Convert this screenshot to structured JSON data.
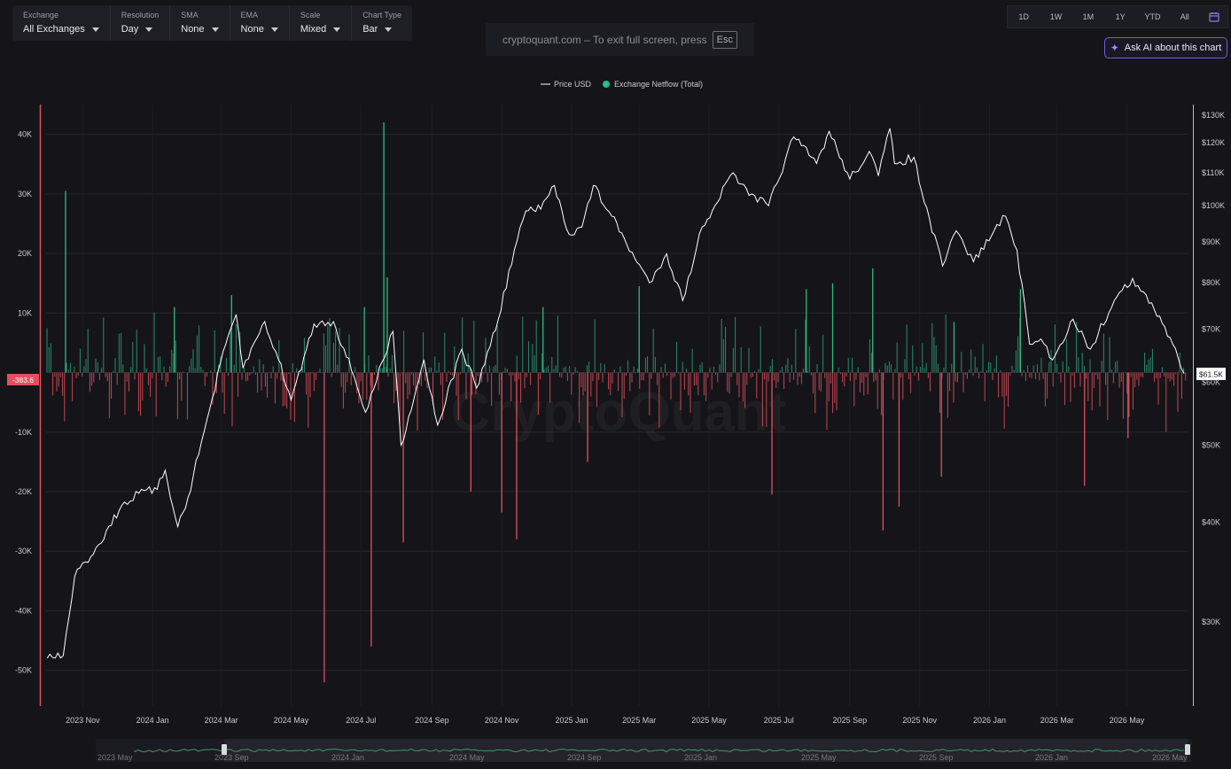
{
  "toolbar": {
    "exchange": {
      "label": "Exchange",
      "value": "All Exchanges"
    },
    "resolution": {
      "label": "Resolution",
      "value": "Day"
    },
    "sma": {
      "label": "SMA",
      "value": "None"
    },
    "ema": {
      "label": "EMA",
      "value": "None"
    },
    "scale": {
      "label": "Scale",
      "value": "Mixed"
    },
    "chart_type": {
      "label": "Chart Type",
      "value": "Bar"
    }
  },
  "fullscreen_note": {
    "text": "cryptoquant.com – To exit full screen, press",
    "key": "Esc"
  },
  "ranges": [
    "1D",
    "1W",
    "1M",
    "1Y",
    "YTD",
    "All"
  ],
  "ask_ai": {
    "label": "Ask AI about this chart",
    "icon": "sparkle-icon"
  },
  "watermark": "CryptoQuant",
  "colors": {
    "price": "#ffffff",
    "inflow": "#2fa07a",
    "outflow": "#e0505f",
    "accent": "#6d5de0"
  },
  "chart_data": {
    "type": "bar",
    "legend": [
      "Price USD",
      "Exchange Netflow (Total)"
    ],
    "legend_position": "top-center",
    "x_ticks": [
      "2023 Nov",
      "2024 Jan",
      "2024 Mar",
      "2024 May",
      "2024 Jul",
      "2024 Sep",
      "2024 Nov",
      "2025 Jan",
      "2025 Mar",
      "2025 May",
      "2025 Jul",
      "2025 Sep",
      "2025 Nov",
      "2026 Jan",
      "2026 Mar",
      "2026 May"
    ],
    "x_range": [
      "2023-09-30",
      "2026-06-23"
    ],
    "left_axis": {
      "ticks": [
        "40K",
        "30K",
        "20K",
        "10K",
        "0",
        "-10K",
        "-20K",
        "-30K",
        "-40K",
        "-50K"
      ],
      "range": [
        -56000,
        45000
      ]
    },
    "right_axis": {
      "ticks": [
        "$130K",
        "$120K",
        "$110K",
        "$100K",
        "$90K",
        "$80K",
        "$70K",
        "$60K",
        "$50K",
        "$40K",
        "$30K"
      ],
      "scale": "log",
      "range": [
        23500,
        134000
      ]
    },
    "current_netflow": "-383.6",
    "current_price": "$61.5K",
    "grid": true,
    "price_series": [
      {
        "x": "2023-10-01",
        "y": 27000
      },
      {
        "x": "2023-10-15",
        "y": 27200
      },
      {
        "x": "2023-10-25",
        "y": 34200
      },
      {
        "x": "2023-11-15",
        "y": 37500
      },
      {
        "x": "2023-12-05",
        "y": 42000
      },
      {
        "x": "2023-12-20",
        "y": 43500
      },
      {
        "x": "2024-01-05",
        "y": 44000
      },
      {
        "x": "2024-01-12",
        "y": 46500
      },
      {
        "x": "2024-01-23",
        "y": 39500
      },
      {
        "x": "2024-02-01",
        "y": 43000
      },
      {
        "x": "2024-02-15",
        "y": 52000
      },
      {
        "x": "2024-03-05",
        "y": 67000
      },
      {
        "x": "2024-03-14",
        "y": 73000
      },
      {
        "x": "2024-03-20",
        "y": 62500
      },
      {
        "x": "2024-04-08",
        "y": 71500
      },
      {
        "x": "2024-04-20",
        "y": 64000
      },
      {
        "x": "2024-05-01",
        "y": 57000
      },
      {
        "x": "2024-05-21",
        "y": 71000
      },
      {
        "x": "2024-06-07",
        "y": 71500
      },
      {
        "x": "2024-06-25",
        "y": 61000
      },
      {
        "x": "2024-07-05",
        "y": 55000
      },
      {
        "x": "2024-07-29",
        "y": 69500
      },
      {
        "x": "2024-08-05",
        "y": 50000
      },
      {
        "x": "2024-08-25",
        "y": 64000
      },
      {
        "x": "2024-09-06",
        "y": 53000
      },
      {
        "x": "2024-09-27",
        "y": 66000
      },
      {
        "x": "2024-10-10",
        "y": 59000
      },
      {
        "x": "2024-10-29",
        "y": 72000
      },
      {
        "x": "2024-11-12",
        "y": 88000
      },
      {
        "x": "2024-11-22",
        "y": 98500
      },
      {
        "x": "2024-12-05",
        "y": 99000
      },
      {
        "x": "2024-12-17",
        "y": 106000
      },
      {
        "x": "2024-12-30",
        "y": 92000
      },
      {
        "x": "2025-01-10",
        "y": 94000
      },
      {
        "x": "2025-01-20",
        "y": 106000
      },
      {
        "x": "2025-02-05",
        "y": 97000
      },
      {
        "x": "2025-02-25",
        "y": 86000
      },
      {
        "x": "2025-03-10",
        "y": 80000
      },
      {
        "x": "2025-03-25",
        "y": 87000
      },
      {
        "x": "2025-04-08",
        "y": 76000
      },
      {
        "x": "2025-04-25",
        "y": 94000
      },
      {
        "x": "2025-05-22",
        "y": 110000
      },
      {
        "x": "2025-06-05",
        "y": 103000
      },
      {
        "x": "2025-06-22",
        "y": 100000
      },
      {
        "x": "2025-07-14",
        "y": 122000
      },
      {
        "x": "2025-08-03",
        "y": 113000
      },
      {
        "x": "2025-08-14",
        "y": 124000
      },
      {
        "x": "2025-09-01",
        "y": 108000
      },
      {
        "x": "2025-09-18",
        "y": 117000
      },
      {
        "x": "2025-09-26",
        "y": 109000
      },
      {
        "x": "2025-10-06",
        "y": 125000
      },
      {
        "x": "2025-10-10",
        "y": 113000
      },
      {
        "x": "2025-10-27",
        "y": 115000
      },
      {
        "x": "2025-11-05",
        "y": 101000
      },
      {
        "x": "2025-11-21",
        "y": 84000
      },
      {
        "x": "2025-12-03",
        "y": 93000
      },
      {
        "x": "2025-12-18",
        "y": 85000
      },
      {
        "x": "2026-01-05",
        "y": 93000
      },
      {
        "x": "2026-01-15",
        "y": 97000
      },
      {
        "x": "2026-01-25",
        "y": 88000
      },
      {
        "x": "2026-02-05",
        "y": 67000
      },
      {
        "x": "2026-02-15",
        "y": 68000
      },
      {
        "x": "2026-02-25",
        "y": 64000
      },
      {
        "x": "2026-03-15",
        "y": 72000
      },
      {
        "x": "2026-03-30",
        "y": 66000
      },
      {
        "x": "2026-04-20",
        "y": 76000
      },
      {
        "x": "2026-05-06",
        "y": 81000
      },
      {
        "x": "2026-05-25",
        "y": 74000
      },
      {
        "x": "2026-06-10",
        "y": 67000
      },
      {
        "x": "2026-06-20",
        "y": 61500
      }
    ],
    "netflow_spikes": [
      {
        "x": "2023-10-17",
        "y": 30500
      },
      {
        "x": "2024-01-20",
        "y": 11000
      },
      {
        "x": "2024-03-10",
        "y": 13000
      },
      {
        "x": "2024-05-30",
        "y": -52000
      },
      {
        "x": "2024-07-04",
        "y": 11000
      },
      {
        "x": "2024-07-10",
        "y": -46000
      },
      {
        "x": "2024-07-21",
        "y": 42000
      },
      {
        "x": "2024-07-24",
        "y": 16000
      },
      {
        "x": "2024-08-07",
        "y": -28500
      },
      {
        "x": "2024-10-05",
        "y": -20000
      },
      {
        "x": "2024-11-01",
        "y": -23500
      },
      {
        "x": "2024-11-14",
        "y": -28000
      },
      {
        "x": "2024-12-07",
        "y": 11000
      },
      {
        "x": "2025-01-15",
        "y": -15000
      },
      {
        "x": "2025-03-01",
        "y": 14500
      },
      {
        "x": "2025-06-25",
        "y": -20500
      },
      {
        "x": "2025-07-25",
        "y": 14000
      },
      {
        "x": "2025-08-17",
        "y": 15000
      },
      {
        "x": "2025-09-21",
        "y": 17500
      },
      {
        "x": "2025-09-30",
        "y": -26500
      },
      {
        "x": "2025-10-14",
        "y": -22500
      },
      {
        "x": "2025-11-20",
        "y": -17500
      },
      {
        "x": "2025-12-01",
        "y": 8500
      },
      {
        "x": "2026-01-28",
        "y": 14000
      },
      {
        "x": "2026-03-25",
        "y": -19000
      },
      {
        "x": "2026-05-02",
        "y": -11000
      }
    ]
  },
  "navigator": {
    "labels": [
      "2023 May",
      "2023 Sep",
      "2024 Jan",
      "2024 May",
      "2024 Sep",
      "2025 Jan",
      "2025 May",
      "2025 Sep",
      "2026 Jan",
      "2026 May"
    ]
  }
}
